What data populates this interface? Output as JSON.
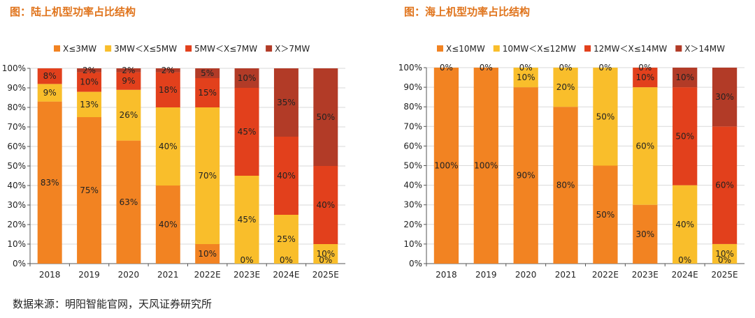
{
  "charts": [
    {
      "title": "图：陆上机型功率占比结构",
      "legend": [
        "X≤3MW",
        "3MW＜X≤5MW",
        "5MW＜X≤7MW",
        "X＞7MW"
      ],
      "colors": [
        "#F28322",
        "#F9BE2B",
        "#E2401C",
        "#B23B27"
      ],
      "y_ticks": [
        "0%",
        "10%",
        "20%",
        "30%",
        "40%",
        "50%",
        "60%",
        "70%",
        "80%",
        "90%",
        "100%"
      ]
    },
    {
      "title": "图：海上机型功率占比结构",
      "legend": [
        "X≤10MW",
        "10MW＜X≤12MW",
        "12MW＜X≤14MW",
        "X＞14MW"
      ],
      "colors": [
        "#F28322",
        "#F9BE2B",
        "#E2401C",
        "#B23B27"
      ],
      "y_ticks": [
        "0%",
        "10%",
        "20%",
        "30%",
        "40%",
        "50%",
        "60%",
        "70%",
        "80%",
        "90%",
        "100%"
      ]
    }
  ],
  "source": "数据来源：明阳智能官网，天风证券研究所",
  "chart_data": [
    {
      "type": "bar",
      "stacked": true,
      "percent": true,
      "categories": [
        "2018",
        "2019",
        "2020",
        "2021",
        "2022E",
        "2023E",
        "2024E",
        "2025E"
      ],
      "series": [
        {
          "name": "X≤3MW",
          "values": [
            83,
            75,
            63,
            40,
            10,
            0,
            0,
            0
          ],
          "labels": [
            "83%",
            "75%",
            "63%",
            "40%",
            "10%",
            "0%",
            "0%",
            "0%"
          ]
        },
        {
          "name": "3MW＜X≤5MW",
          "values": [
            9,
            13,
            26,
            40,
            70,
            45,
            25,
            10
          ],
          "labels": [
            "9%",
            "13%",
            "26%",
            "40%",
            "70%",
            "45%",
            "25%",
            "10%"
          ]
        },
        {
          "name": "5MW＜X≤7MW",
          "values": [
            8,
            10,
            9,
            18,
            15,
            45,
            40,
            40
          ],
          "labels": [
            "8%",
            "10%",
            "9%",
            "18%",
            "15%",
            "45%",
            "40%",
            "40%"
          ]
        },
        {
          "name": "X＞7MW",
          "values": [
            0,
            2,
            2,
            2,
            5,
            10,
            35,
            50
          ],
          "labels": [
            "",
            "2%",
            "2%",
            "2%",
            "5%",
            "10%",
            "35%",
            "50%"
          ]
        }
      ],
      "ylim": [
        0,
        100
      ],
      "legend_position": "top"
    },
    {
      "type": "bar",
      "stacked": true,
      "percent": true,
      "categories": [
        "2018",
        "2019",
        "2020",
        "2021",
        "2022E",
        "2023E",
        "2024E",
        "2025E"
      ],
      "series": [
        {
          "name": "X≤10MW",
          "values": [
            100,
            100,
            90,
            80,
            50,
            30,
            0,
            0
          ],
          "labels": [
            "100%",
            "100%",
            "90%",
            "80%",
            "50%",
            "30%",
            "0%",
            "0%"
          ]
        },
        {
          "name": "10MW＜X≤12MW",
          "values": [
            0,
            0,
            10,
            20,
            50,
            60,
            40,
            10
          ],
          "labels": [
            "0%",
            "0%",
            "10%",
            "20%",
            "50%",
            "60%",
            "40%",
            "10%"
          ]
        },
        {
          "name": "12MW＜X≤14MW",
          "values": [
            0,
            0,
            0,
            0,
            0,
            10,
            50,
            60
          ],
          "labels": [
            "",
            "",
            "0%",
            "0%",
            "0%",
            "10%",
            "50%",
            "60%"
          ]
        },
        {
          "name": "X＞14MW",
          "values": [
            0,
            0,
            0,
            0,
            0,
            0,
            10,
            30
          ],
          "labels": [
            "",
            "",
            "",
            "",
            "",
            "0%",
            "10%",
            "30%"
          ]
        }
      ],
      "ylim": [
        0,
        100
      ],
      "legend_position": "top"
    }
  ]
}
